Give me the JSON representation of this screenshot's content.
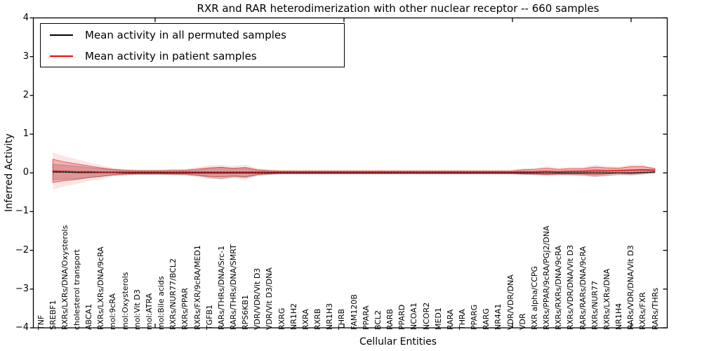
{
  "title": "RXR and RAR heterodimerization with other nuclear receptor -- 660 samples",
  "legend": {
    "items": [
      {
        "label": "Mean activity in all permuted samples",
        "color": "#000000"
      },
      {
        "label": "Mean activity in patient samples",
        "color": "#ff0000"
      }
    ]
  },
  "chart_data": {
    "type": "line",
    "title": "RXR and RAR heterodimerization with other nuclear receptor -- 660 samples",
    "xlabel": "Cellular Entities",
    "ylabel": "Inferred Activity",
    "ylim": [
      -4,
      4
    ],
    "yticks": [
      4,
      3,
      2,
      1,
      0,
      -1,
      -2,
      -3,
      -4
    ],
    "grid": false,
    "legend_position": "upper left",
    "categories": [
      "TNF",
      "SREBF1",
      "RXRs/LXRs/DNA/Oxysterols",
      "cholesterol transport",
      "ABCA1",
      "RXRs/LXRs/DNA/9cRA",
      "mol:9cRA",
      "mol:Oxysterols",
      "mol:Vit D3",
      "mol:ATRA",
      "mol:Bile acids",
      "RXRs/NUR77/BCL2",
      "RXRs/PPAR",
      "RXRs/FXR/9cRA/MED1",
      "TGFB1",
      "RARs/THRs/DNA/Src-1",
      "RARs/THRs/DNA/SMRT",
      "RPS6KB1",
      "VDR/VDR/Vit D3",
      "VDR/Vit D3/DNA",
      "RXRG",
      "NR1H2",
      "RXRA",
      "RXRB",
      "NR1H3",
      "THRB",
      "FAM120B",
      "PPARA",
      "BCL2",
      "RARB",
      "PPARD",
      "NCOA1",
      "NCOR2",
      "MED1",
      "RARA",
      "THRA",
      "PPARG",
      "RARG",
      "NR4A1",
      "VDR/VDR/DNA",
      "VDR",
      "RXR alpha/CCPG",
      "RXRs/PPAR/9cRA/PGJ2/DNA",
      "RXRs/RXRs/DNA/9cRA",
      "RXRs/VDR/DNA/Vit D3",
      "RARs/RARs/DNA/9cRA",
      "RXRs/NUR77",
      "RXRs/LXRs/DNA",
      "NR1H4",
      "RARs/VDR/DNA/Vit D3",
      "RXRs/FXR",
      "RARs/THRs"
    ],
    "series": [
      {
        "name": "Mean activity in all permuted samples",
        "color": "#000000",
        "line_style": "dotted",
        "band_color": "#808080",
        "mean": [
          null,
          0.02,
          0.02,
          0.01,
          0.01,
          0.01,
          0.01,
          0,
          0,
          0,
          0,
          0,
          0,
          0,
          0,
          0,
          0,
          0,
          0,
          0,
          0,
          0,
          0,
          0,
          0,
          0,
          0,
          0,
          0,
          0,
          0,
          0,
          0,
          0,
          0,
          0,
          0,
          0,
          0,
          0,
          0,
          0,
          0,
          0,
          0,
          0,
          0,
          0,
          0,
          0,
          0.01,
          0.02
        ],
        "std": [
          null,
          0.2,
          0.18,
          0.16,
          0.13,
          0.1,
          0.07,
          0.05,
          0.04,
          0.04,
          0.04,
          0.04,
          0.05,
          0.07,
          0.12,
          0.15,
          0.1,
          0.12,
          0.06,
          0.04,
          0.03,
          0.03,
          0.03,
          0.03,
          0.03,
          0.03,
          0.03,
          0.03,
          0.03,
          0.03,
          0.03,
          0.03,
          0.03,
          0.03,
          0.03,
          0.03,
          0.03,
          0.03,
          0.03,
          0.03,
          0.04,
          0.04,
          0.05,
          0.04,
          0.05,
          0.06,
          0.09,
          0.07,
          0.05,
          0.05,
          0.04,
          0.03
        ]
      },
      {
        "name": "Mean activity in patient samples",
        "color": "#ff0000",
        "line_style": "solid",
        "band_color": "#e83333",
        "mean": [
          null,
          0.05,
          0.04,
          0.03,
          0.03,
          0.02,
          0.02,
          0.02,
          0.02,
          0.02,
          0.02,
          0.02,
          0.02,
          0.02,
          0.02,
          0.02,
          0.02,
          0.02,
          0.02,
          0.02,
          0.02,
          0.02,
          0.02,
          0.02,
          0.02,
          0.02,
          0.02,
          0.02,
          0.02,
          0.02,
          0.02,
          0.02,
          0.02,
          0.02,
          0.02,
          0.02,
          0.02,
          0.02,
          0.02,
          0.02,
          0.03,
          0.03,
          0.04,
          0.03,
          0.04,
          0.04,
          0.05,
          0.05,
          0.06,
          0.07,
          0.08,
          0.07
        ],
        "std": [
          null,
          0.3,
          0.24,
          0.2,
          0.15,
          0.11,
          0.07,
          0.05,
          0.04,
          0.04,
          0.04,
          0.05,
          0.05,
          0.08,
          0.11,
          0.12,
          0.1,
          0.12,
          0.06,
          0.04,
          0.03,
          0.03,
          0.03,
          0.03,
          0.03,
          0.03,
          0.03,
          0.03,
          0.03,
          0.03,
          0.03,
          0.03,
          0.03,
          0.03,
          0.03,
          0.03,
          0.03,
          0.03,
          0.03,
          0.03,
          0.05,
          0.06,
          0.08,
          0.06,
          0.07,
          0.07,
          0.1,
          0.08,
          0.06,
          0.09,
          0.08,
          0.04
        ]
      }
    ]
  }
}
